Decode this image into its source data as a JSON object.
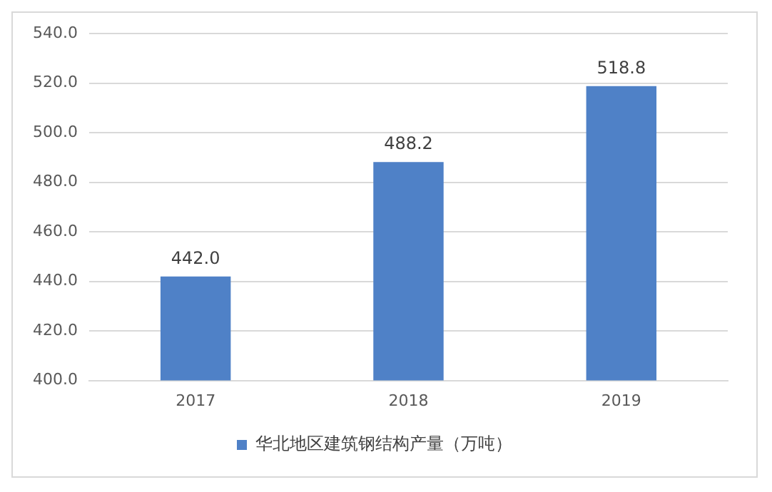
{
  "chart_data": {
    "type": "bar",
    "categories": [
      "2017",
      "2018",
      "2019"
    ],
    "series": [
      {
        "name": "华北地区建筑钢结构产量（万吨）",
        "color": "#4f81c7",
        "values": [
          442.0,
          488.2,
          518.8
        ],
        "value_labels": [
          "442.0",
          "488.2",
          "518.8"
        ]
      }
    ],
    "ylim": [
      400,
      540
    ],
    "yticks": [
      {
        "value": 400,
        "label": "400.0"
      },
      {
        "value": 420,
        "label": "420.0"
      },
      {
        "value": 440,
        "label": "440.0"
      },
      {
        "value": 460,
        "label": "460.0"
      },
      {
        "value": 480,
        "label": "480.0"
      },
      {
        "value": 500,
        "label": "500.0"
      },
      {
        "value": 520,
        "label": "520.0"
      },
      {
        "value": 540,
        "label": "540.0"
      }
    ],
    "grid": "y",
    "legend": "bottom"
  }
}
